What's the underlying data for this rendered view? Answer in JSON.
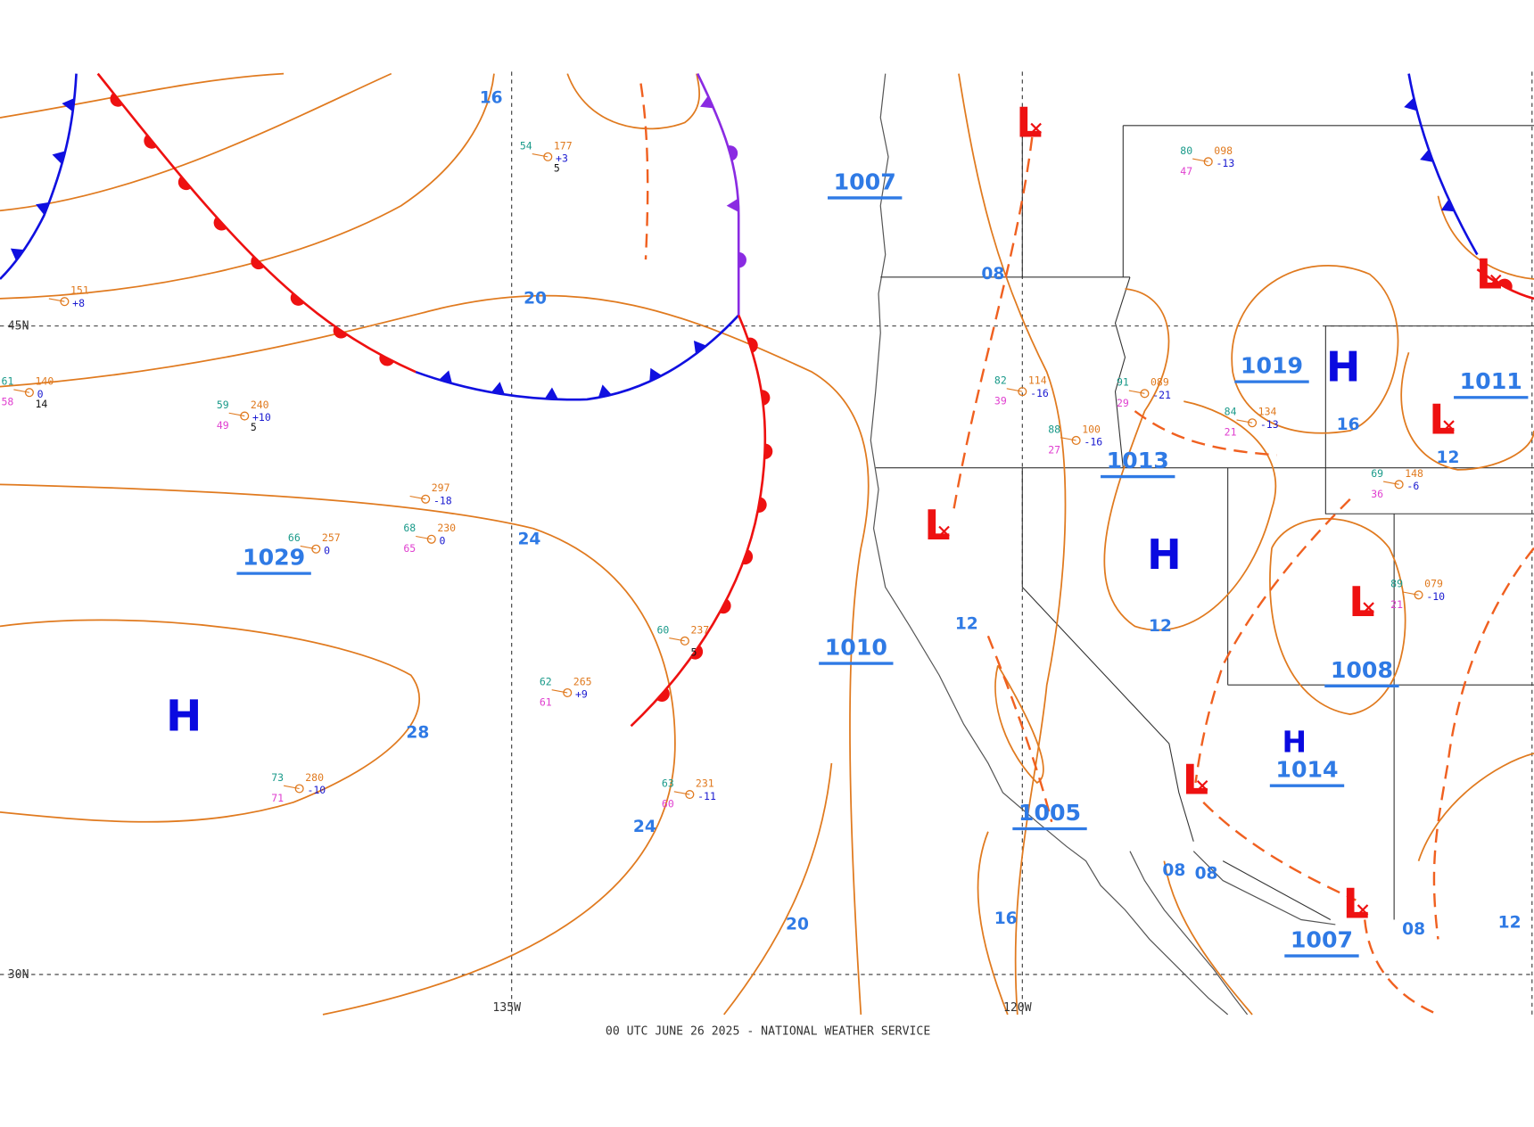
{
  "map": {
    "footer": "00 UTC JUNE 26 2025 - NATIONAL WEATHER SERVICE",
    "lat_labels": [
      "45N",
      "30N"
    ],
    "lon_labels": [
      "135W",
      "120W"
    ],
    "highs": [
      "H",
      "H",
      "H",
      "H"
    ],
    "lows": [
      "L",
      "L",
      "L",
      "L",
      "L",
      "L",
      "L"
    ],
    "center_pressures": [
      "1007",
      "1029",
      "1010",
      "1019",
      "1013",
      "1011",
      "1008",
      "1014",
      "1005",
      "1007"
    ],
    "isobar_labels": [
      "16",
      "20",
      "24",
      "28",
      "24",
      "20",
      "08",
      "12",
      "16",
      "12",
      "12",
      "16",
      "08",
      "08",
      "08",
      "12"
    ],
    "stations": [
      {
        "pressure": "151",
        "tendency": "+8"
      },
      {
        "temp": "61",
        "pressure": "140",
        "dew": "58",
        "tendency": "0",
        "extra": "14"
      },
      {
        "temp": "59",
        "pressure": "240",
        "dew": "49",
        "tendency": "+10",
        "extra": "5"
      },
      {
        "temp": "66",
        "pressure": "257",
        "tendency": "0"
      },
      {
        "temp": "68",
        "pressure": "230",
        "dew": "65",
        "tendency": "0"
      },
      {
        "pressure": "297",
        "tendency": "-18"
      },
      {
        "temp": "73",
        "pressure": "280",
        "dew": "71",
        "tendency": "-10"
      },
      {
        "temp": "62",
        "pressure": "265",
        "dew": "61",
        "tendency": "+9"
      },
      {
        "temp": "60",
        "pressure": "237",
        "extra": "5"
      },
      {
        "temp": "63",
        "pressure": "231",
        "dew": "60",
        "tendency": "-11"
      },
      {
        "temp": "54",
        "pressure": "177",
        "tendency": "+3",
        "extra": "5"
      },
      {
        "temp": "82",
        "pressure": "114",
        "dew": "39",
        "tendency": "-16"
      },
      {
        "temp": "88",
        "pressure": "100",
        "dew": "27",
        "tendency": "-16"
      },
      {
        "temp": "91",
        "pressure": "089",
        "dew": "29",
        "tendency": "-21"
      },
      {
        "temp": "80",
        "pressure": "098",
        "dew": "47",
        "tendency": "-13"
      },
      {
        "temp": "84",
        "pressure": "134",
        "dew": "21",
        "tendency": "-13"
      },
      {
        "temp": "69",
        "pressure": "148",
        "dew": "36",
        "tendency": "-6"
      },
      {
        "temp": "89",
        "pressure": "079",
        "dew": "21",
        "tendency": "-10"
      }
    ]
  }
}
